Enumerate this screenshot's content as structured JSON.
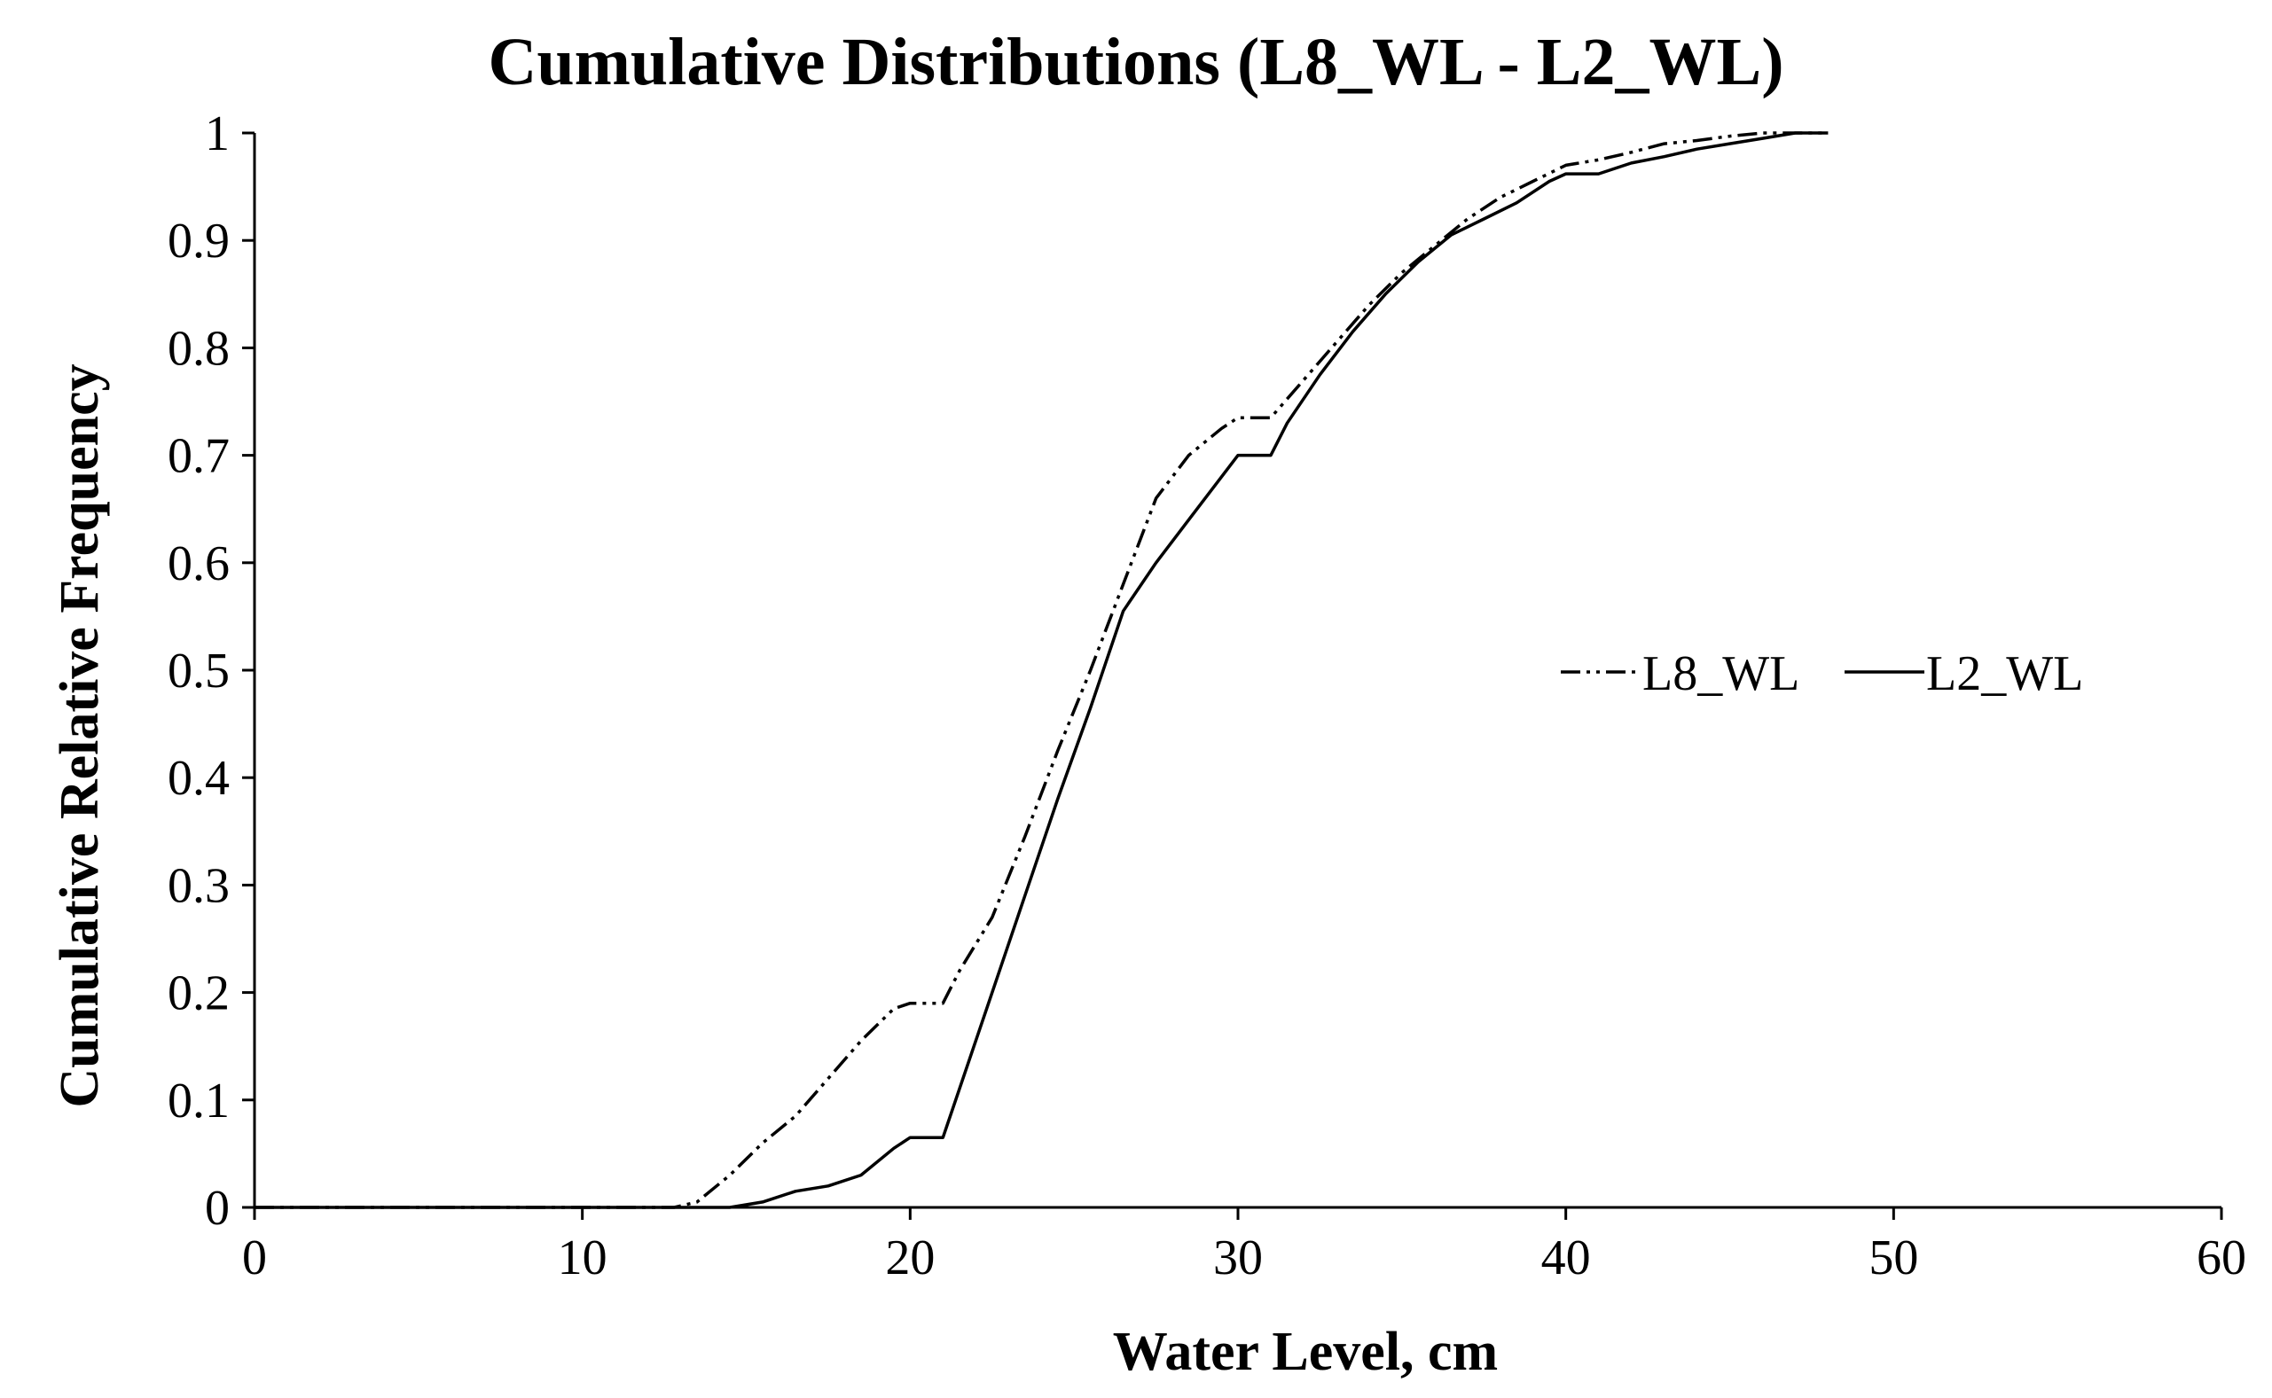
{
  "chart_data": {
    "type": "line",
    "title": "Cumulative Distributions (L8_WL - L2_WL)",
    "xlabel": "Water Level, cm",
    "ylabel": "Cumulative Relative Frequency",
    "xlim": [
      0,
      60
    ],
    "ylim": [
      0,
      1
    ],
    "xticks": [
      0,
      10,
      20,
      30,
      40,
      50,
      60
    ],
    "xtick_labels": [
      "0",
      "10",
      "20",
      "30",
      "40",
      "50",
      "60"
    ],
    "yticks": [
      0,
      0.1,
      0.2,
      0.3,
      0.4,
      0.5,
      0.6,
      0.7,
      0.8,
      0.9,
      1
    ],
    "ytick_labels": [
      "0",
      "0.1",
      "0.2",
      "0.3",
      "0.4",
      "0.5",
      "0.6",
      "0.7",
      "0.8",
      "0.9",
      "1"
    ],
    "grid": false,
    "legend_position": "center-right",
    "series": [
      {
        "name": "L8_WL",
        "line_style": "dash-dot-dot",
        "color": "#000000",
        "x": [
          12.8,
          13.5,
          14.5,
          15.5,
          16.5,
          17.5,
          18.5,
          19.5,
          20.0,
          21.0,
          21.5,
          22.5,
          23.5,
          24.5,
          25.5,
          26.5,
          27.5,
          28.5,
          29.5,
          30.0,
          31.0,
          32.0,
          33.0,
          34.0,
          35.0,
          36.0,
          37.0,
          38.0,
          39.0,
          40.0,
          41.0,
          42.0,
          43.0,
          44.0,
          45.0,
          46.0,
          47.0,
          48.0
        ],
        "y": [
          0.0,
          0.005,
          0.03,
          0.06,
          0.085,
          0.12,
          0.155,
          0.185,
          0.19,
          0.19,
          0.22,
          0.27,
          0.345,
          0.425,
          0.5,
          0.58,
          0.66,
          0.7,
          0.725,
          0.735,
          0.735,
          0.77,
          0.805,
          0.84,
          0.87,
          0.895,
          0.92,
          0.94,
          0.955,
          0.97,
          0.975,
          0.982,
          0.99,
          0.993,
          0.997,
          1.0,
          1.0,
          1.0
        ]
      },
      {
        "name": "L2_WL",
        "line_style": "solid",
        "color": "#000000",
        "x": [
          14.5,
          15.5,
          16.5,
          17.5,
          18.5,
          19.5,
          20.0,
          21.0,
          21.5,
          22.5,
          23.5,
          24.5,
          25.5,
          26.5,
          27.5,
          28.5,
          29.5,
          30.0,
          31.0,
          31.5,
          32.5,
          33.5,
          34.5,
          35.5,
          36.5,
          37.5,
          38.5,
          39.5,
          40.0,
          41.0,
          42.0,
          43.0,
          44.0,
          45.0,
          46.0,
          47.0,
          48.0
        ],
        "y": [
          0.0,
          0.005,
          0.015,
          0.02,
          0.03,
          0.055,
          0.065,
          0.065,
          0.11,
          0.2,
          0.29,
          0.38,
          0.465,
          0.555,
          0.6,
          0.64,
          0.68,
          0.7,
          0.7,
          0.73,
          0.775,
          0.815,
          0.85,
          0.88,
          0.905,
          0.92,
          0.935,
          0.955,
          0.962,
          0.962,
          0.972,
          0.978,
          0.985,
          0.99,
          0.995,
          1.0,
          1.0
        ]
      }
    ]
  }
}
